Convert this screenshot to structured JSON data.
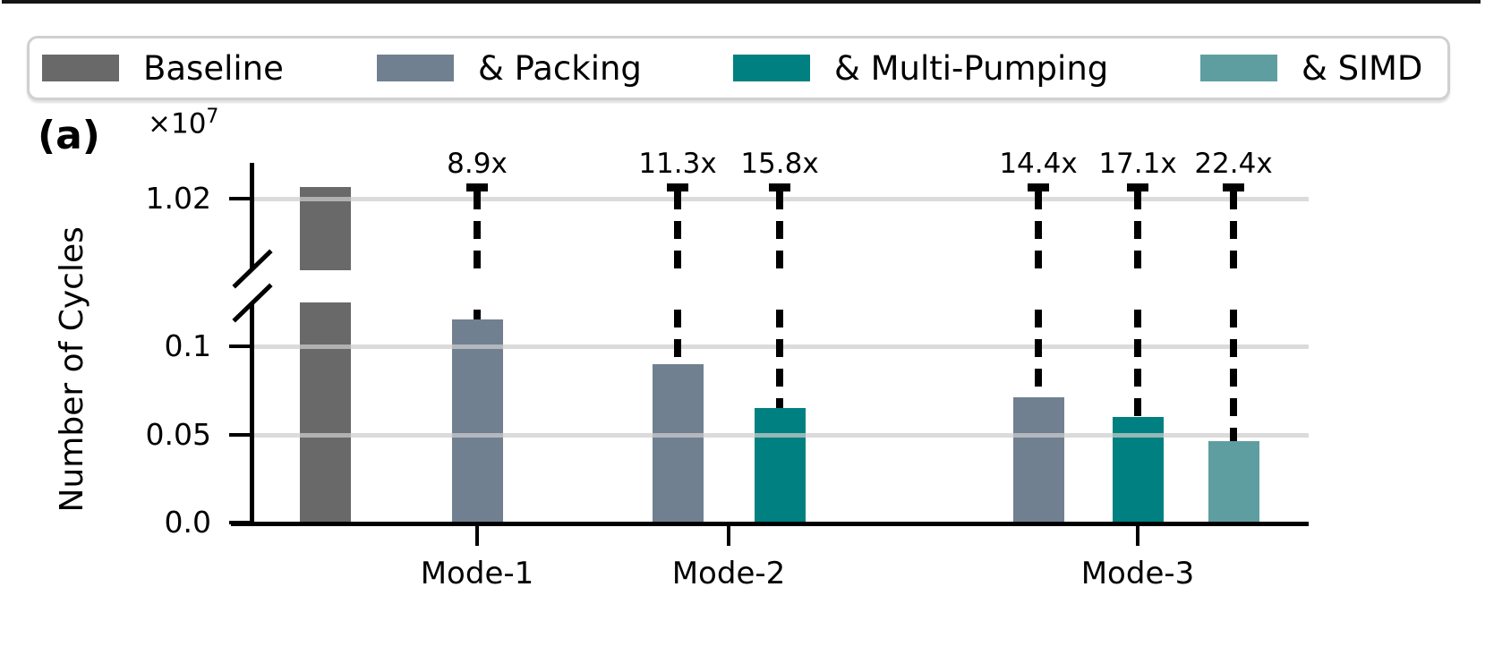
{
  "figure": {
    "panel_label": "(a)"
  },
  "legend": {
    "items": [
      {
        "label": "Baseline",
        "color": "#696969"
      },
      {
        "label": "& Packing",
        "color": "#708090"
      },
      {
        "label": "& Multi-Pumping",
        "color": "#008080"
      },
      {
        "label": "& SIMD",
        "color": "#5f9ea0"
      }
    ]
  },
  "chart_data": {
    "type": "bar",
    "title": "",
    "ylabel": "Number of Cycles",
    "y_multiplier": {
      "base": "×10",
      "exponent": "7"
    },
    "y_axis": {
      "broken": true,
      "lower_ticks": [
        {
          "label": "0.0",
          "value": 0.0
        },
        {
          "label": "0.05",
          "value": 0.05
        },
        {
          "label": "0.1",
          "value": 0.1
        }
      ],
      "upper_ticks": [
        {
          "label": "1.02",
          "value": 1.02
        }
      ]
    },
    "xticks": [
      "Mode-1",
      "Mode-2",
      "Mode-3"
    ],
    "series_colors": {
      "Baseline": "#696969",
      "& Packing": "#708090",
      "& Multi-Pumping": "#008080",
      "& SIMD": "#5f9ea0"
    },
    "bars": [
      {
        "series": "Baseline",
        "category": "",
        "value_x1e7": 1.02,
        "speedup": ""
      },
      {
        "series": "& Packing",
        "category": "Mode-1",
        "value_x1e7": 0.115,
        "speedup": "8.9x"
      },
      {
        "series": "& Packing",
        "category": "Mode-2",
        "value_x1e7": 0.09,
        "speedup": "11.3x"
      },
      {
        "series": "& Multi-Pumping",
        "category": "Mode-2",
        "value_x1e7": 0.065,
        "speedup": "15.8x"
      },
      {
        "series": "& Packing",
        "category": "Mode-3",
        "value_x1e7": 0.071,
        "speedup": "14.4x"
      },
      {
        "series": "& Multi-Pumping",
        "category": "Mode-3",
        "value_x1e7": 0.06,
        "speedup": "17.1x"
      },
      {
        "series": "& SIMD",
        "category": "Mode-3",
        "value_x1e7": 0.046,
        "speedup": "22.4x"
      }
    ],
    "grid": "horizontal",
    "legend_position": "top"
  }
}
